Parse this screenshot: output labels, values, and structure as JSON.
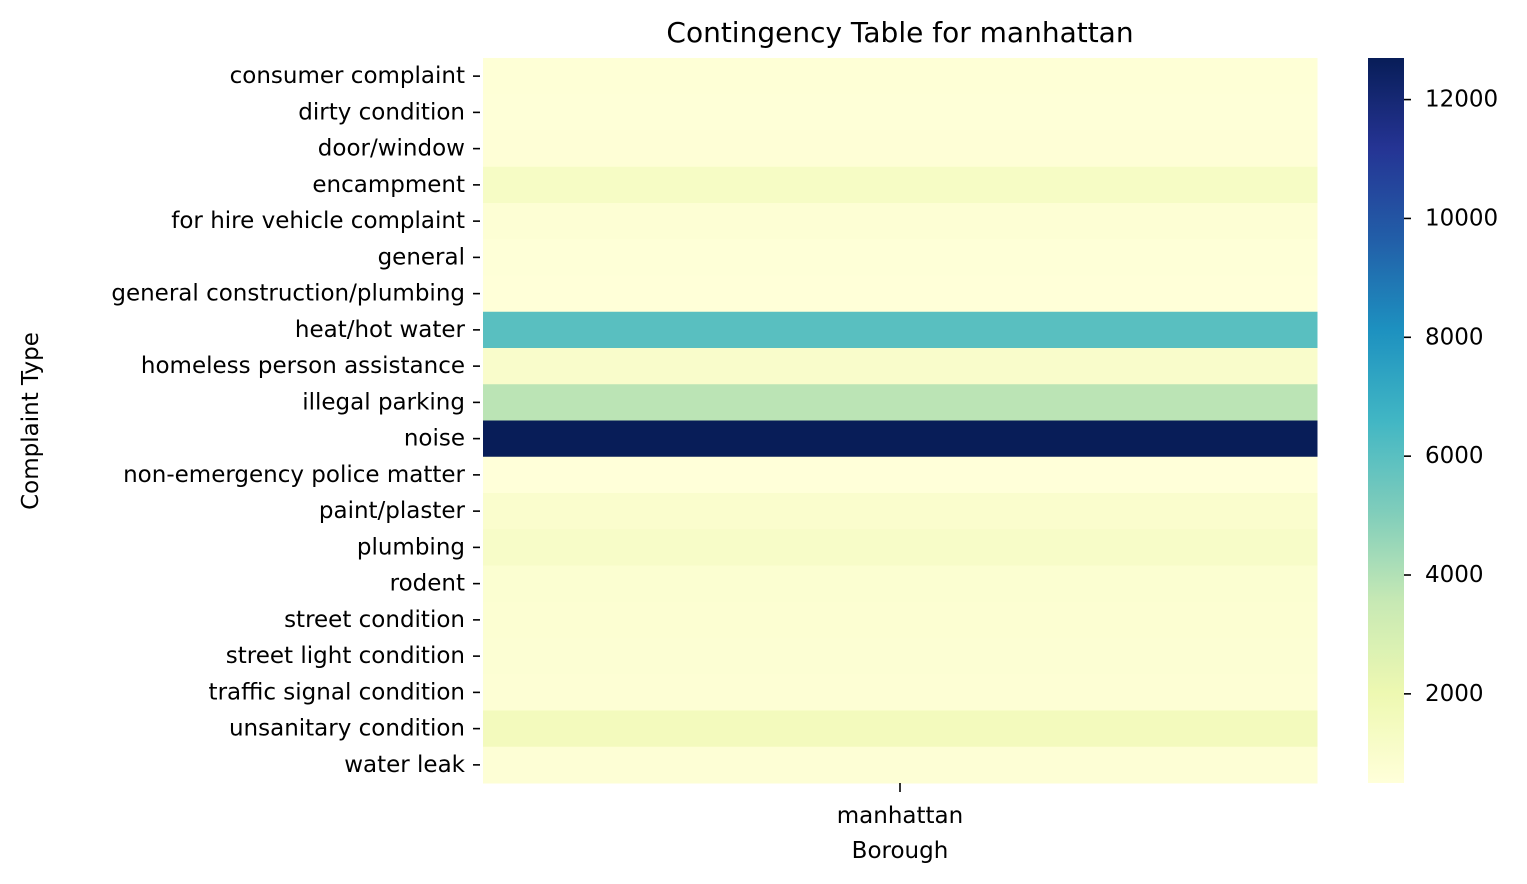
{
  "chart_data": {
    "type": "heatmap",
    "title": "Contingency Table for manhattan",
    "xlabel": "Borough",
    "ylabel": "Complaint Type",
    "columns": [
      "manhattan"
    ],
    "rows": [
      "consumer complaint",
      "dirty condition",
      "door/window",
      "encampment",
      "for hire vehicle complaint",
      "general",
      "general construction/plumbing",
      "heat/hot water",
      "homeless person assistance",
      "illegal parking",
      "noise",
      "non-emergency police matter",
      "paint/plaster",
      "plumbing",
      "rodent",
      "street condition",
      "street light condition",
      "traffic signal condition",
      "unsanitary condition",
      "water leak"
    ],
    "values": [
      [
        600
      ],
      [
        580
      ],
      [
        620
      ],
      [
        1250
      ],
      [
        700
      ],
      [
        560
      ],
      [
        540
      ],
      [
        6000
      ],
      [
        1050
      ],
      [
        3800
      ],
      [
        12700
      ],
      [
        500
      ],
      [
        950
      ],
      [
        1150
      ],
      [
        800
      ],
      [
        750
      ],
      [
        720
      ],
      [
        680
      ],
      [
        1550
      ],
      [
        650
      ]
    ],
    "colorbar": {
      "colormap": "YlGnBu",
      "vmin": 500,
      "vmax": 12700,
      "ticks": [
        2000,
        4000,
        6000,
        8000,
        10000,
        12000
      ]
    }
  }
}
